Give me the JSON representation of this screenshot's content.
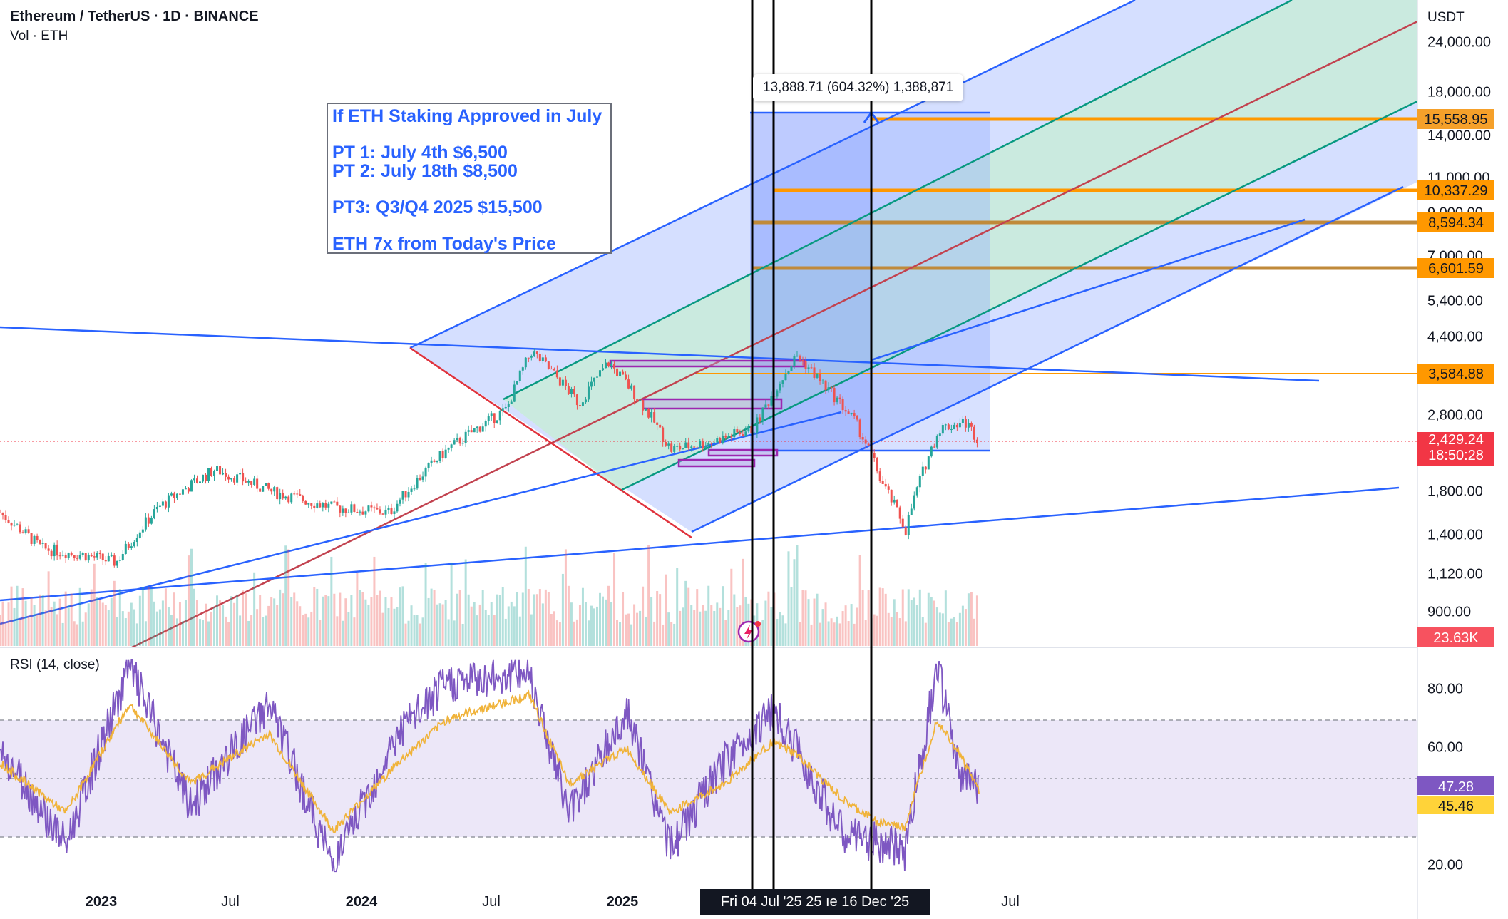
{
  "header": {
    "title": "Ethereum / TetherUS · 1D · BINANCE",
    "volume_label": "Vol · ETH",
    "rsi_label": "RSI (14, close)",
    "currency": "USDT"
  },
  "note": {
    "lines": [
      "If ETH Staking Approved in July",
      "",
      "PT 1: July 4th $6,500",
      "PT 2: July 18th $8,500",
      "",
      "PT3: Q3/Q4 2025 $15,500",
      "",
      "ETH 7x from Today's Price"
    ]
  },
  "measure_label": "13,888.71 (604.32%) 1,388,871",
  "x_axis_labels": {
    "y2023": "2023",
    "jul2023": "Jul",
    "y2024": "2024",
    "jul2024": "Jul",
    "y2025": "2025",
    "jul2025": "Jul"
  },
  "crosshair_x_label": "Fri 04 Jul '25   25   ıe 16 Dec '25",
  "colors": {
    "up": "#26a69a",
    "down": "#ef5350",
    "channel_blue": "#2962ff",
    "channel_fill": "#b3c5ff",
    "inner_green_fill": "#c8ecd9",
    "median_red": "#c2424f",
    "level_orange": "#ff9800",
    "level_brown": "#c08a3a",
    "rsi_line": "#7e57c2",
    "rsi_ma": "#f0b33a",
    "rsi_band": "#ece7f8",
    "price_badge": "#f23645",
    "trend_red": "#e0323c"
  },
  "chart_data": [
    {
      "type": "line",
      "name": "price",
      "title": "",
      "ylabel": "USDT",
      "y_scale": "log",
      "ylim": [
        750,
        30000
      ],
      "xlim": [
        "2022-09-01",
        "2025-10-01"
      ],
      "y_ticks": [
        24000,
        18000,
        14000,
        11000,
        9000,
        7000,
        5400,
        4400,
        2800,
        1800,
        1400,
        1120,
        900
      ],
      "y_tick_labels": [
        "24,000.00",
        "18,000.00",
        "14,000.00",
        "11,000.00",
        "9,000.00",
        "7,000.00",
        "5,400.00",
        "4,400.00",
        "2,800.00",
        "1,800.00",
        "1,400.00",
        "1,120.00",
        "900.00"
      ],
      "x": [
        "2022-09-01",
        "2022-10-15",
        "2022-12-01",
        "2023-01-01",
        "2023-02-15",
        "2023-04-15",
        "2023-06-15",
        "2023-08-15",
        "2023-10-15",
        "2023-12-15",
        "2024-02-15",
        "2024-03-12",
        "2024-05-01",
        "2024-06-01",
        "2024-08-05",
        "2024-09-15",
        "2024-11-01",
        "2024-12-16",
        "2025-01-15",
        "2025-02-15",
        "2025-03-15",
        "2025-04-09",
        "2025-05-15",
        "2025-06-10",
        "2025-06-25"
      ],
      "values": [
        1600,
        1300,
        1250,
        1200,
        1650,
        2050,
        1800,
        1650,
        1600,
        2300,
        2900,
        4050,
        3000,
        3800,
        2300,
        2400,
        2600,
        3950,
        3300,
        2700,
        1900,
        1450,
        2600,
        2700,
        2429.24
      ],
      "price_levels": [
        {
          "label": "15,558.95",
          "value": 15558.95,
          "style": "orange"
        },
        {
          "label": "10,337.29",
          "value": 10337.29,
          "style": "orange"
        },
        {
          "label": "8,594.34",
          "value": 8594.34,
          "style": "brown"
        },
        {
          "label": "6,601.59",
          "value": 6601.59,
          "style": "brown"
        },
        {
          "label": "3,584.88",
          "value": 3584.88,
          "style": "orange"
        }
      ],
      "last_price": {
        "label": "2,429.24",
        "value": 2429.24,
        "countdown": "18:50:28"
      },
      "volume_badge": "23.63K",
      "vertical_markers": [
        "2025-07-04",
        "2025-07-18",
        "2025-12-16"
      ]
    },
    {
      "type": "line",
      "name": "RSI (14, close)",
      "title": "",
      "ylim": [
        15,
        90
      ],
      "bands": [
        30,
        50,
        70
      ],
      "y_ticks": [
        80,
        60,
        20
      ],
      "y_tick_labels": [
        "80.00",
        "60.00",
        "20.00"
      ],
      "x": [
        "2022-09-01",
        "2022-11-09",
        "2023-01-15",
        "2023-03-20",
        "2023-06-10",
        "2023-08-17",
        "2023-10-24",
        "2023-12-15",
        "2024-03-10",
        "2024-04-20",
        "2024-06-20",
        "2024-08-05",
        "2024-10-01",
        "2024-11-20",
        "2024-12-15",
        "2025-02-03",
        "2025-03-10",
        "2025-04-08",
        "2025-05-12",
        "2025-06-05",
        "2025-06-25"
      ],
      "values": [
        60,
        27,
        88,
        40,
        75,
        20,
        65,
        82,
        86,
        38,
        72,
        26,
        55,
        73,
        60,
        30,
        28,
        25,
        88,
        50,
        47.28
      ],
      "ma_values": [
        55,
        38,
        75,
        48,
        65,
        32,
        55,
        70,
        78,
        48,
        60,
        38,
        48,
        62,
        58,
        42,
        35,
        33,
        70,
        58,
        45.46
      ],
      "last_rsi": "47.28",
      "last_rsi_ma": "45.46"
    }
  ]
}
